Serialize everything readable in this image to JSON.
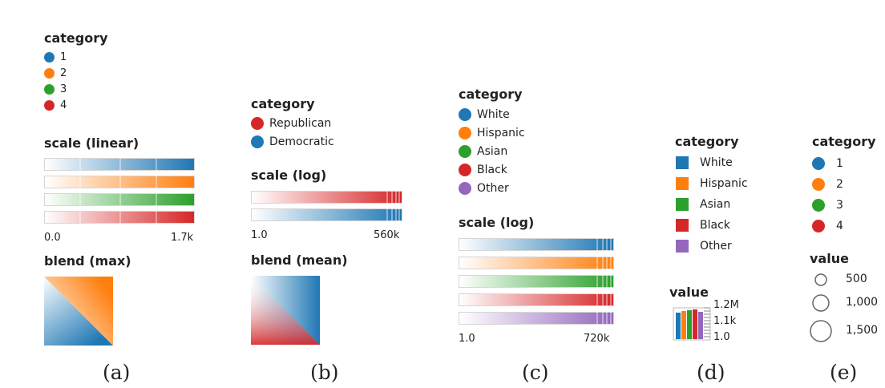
{
  "panel_a": {
    "legend_title": "category",
    "items": [
      {
        "label": "1",
        "color": "#1f77b4"
      },
      {
        "label": "2",
        "color": "#ff7f0e"
      },
      {
        "label": "3",
        "color": "#2ca02c"
      },
      {
        "label": "4",
        "color": "#d62728"
      }
    ],
    "scale_title": "scale (linear)",
    "scale_min": "0.0",
    "scale_max": "1.7k",
    "blend_title": "blend (max)",
    "caption": "(a)"
  },
  "panel_b": {
    "legend_title": "category",
    "items": [
      {
        "label": "Republican",
        "color": "#d62728"
      },
      {
        "label": "Democratic",
        "color": "#1f77b4"
      }
    ],
    "scale_title": "scale (log)",
    "scale_min": "1.0",
    "scale_max": "560k",
    "blend_title": "blend (mean)",
    "caption": "(b)"
  },
  "panel_c": {
    "legend_title": "category",
    "items": [
      {
        "label": "White",
        "color": "#1f77b4"
      },
      {
        "label": "Hispanic",
        "color": "#ff7f0e"
      },
      {
        "label": "Asian",
        "color": "#2ca02c"
      },
      {
        "label": "Black",
        "color": "#d62728"
      },
      {
        "label": "Other",
        "color": "#9467bd"
      }
    ],
    "scale_title": "scale (log)",
    "scale_min": "1.0",
    "scale_max": "720k",
    "caption": "(c)"
  },
  "panel_d": {
    "legend_title": "category",
    "items": [
      {
        "label": "White",
        "color": "#1f77b4"
      },
      {
        "label": "Hispanic",
        "color": "#ff7f0e"
      },
      {
        "label": "Asian",
        "color": "#2ca02c"
      },
      {
        "label": "Black",
        "color": "#d62728"
      },
      {
        "label": "Other",
        "color": "#9467bd"
      }
    ],
    "value_title": "value",
    "value_ticks": [
      "1.2M",
      "1.1k",
      "1.0"
    ],
    "caption": "(d)"
  },
  "panel_e": {
    "legend_title": "category",
    "items": [
      {
        "label": "1",
        "color": "#1f77b4"
      },
      {
        "label": "2",
        "color": "#ff7f0e"
      },
      {
        "label": "3",
        "color": "#2ca02c"
      },
      {
        "label": "4",
        "color": "#d62728"
      }
    ],
    "value_title": "value",
    "sizes": [
      "500",
      "1,000",
      "1,500"
    ],
    "caption": "(e)"
  }
}
